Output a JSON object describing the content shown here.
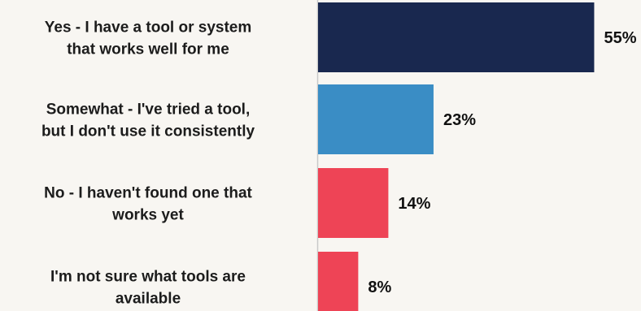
{
  "chart_data": {
    "type": "bar",
    "orientation": "horizontal",
    "title": "",
    "xlabel": "",
    "ylabel": "",
    "xlim": [
      0,
      64
    ],
    "grid": false,
    "legend": "none",
    "value_suffix": "%",
    "categories": [
      [
        "Yes - I have a tool or system",
        "that works well for me"
      ],
      [
        "Somewhat - I've tried a tool,",
        "but I don't use it consistently"
      ],
      [
        "No - I haven't found one that",
        "works yet"
      ],
      [
        "I'm not sure what tools are",
        "available"
      ]
    ],
    "values": [
      55,
      23,
      14,
      8
    ],
    "value_labels": [
      "55%",
      "23%",
      "14%",
      "8%"
    ],
    "colors": [
      "#19284f",
      "#3a8dc5",
      "#ee4456",
      "#ee4456"
    ]
  }
}
